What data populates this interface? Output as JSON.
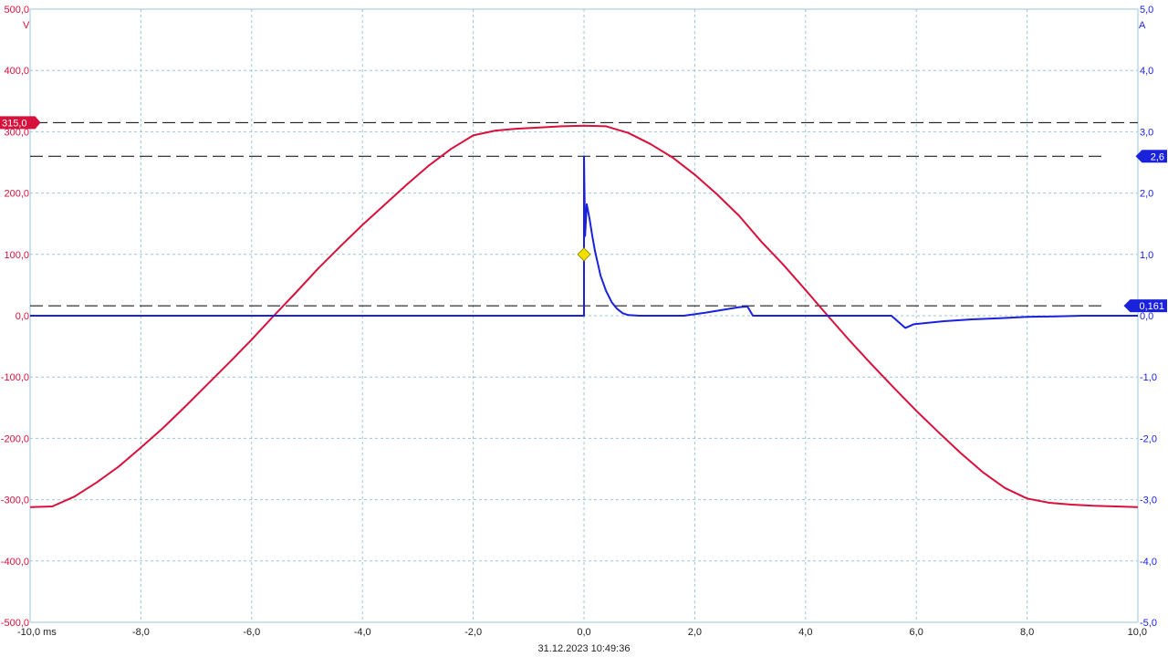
{
  "colors": {
    "voltage": "#d8103c",
    "current": "#1a22dc",
    "grid": "#9cc6d8",
    "cursor_line": "#000000",
    "trigger_marker": "#f0e000",
    "text": "#222222"
  },
  "timestamp": "31.12.2023 10:49:36",
  "chart_data": {
    "type": "line",
    "grid": true,
    "x": {
      "range": [
        -10.0,
        10.0
      ],
      "ticks": [
        -10,
        -8,
        -6,
        -4,
        -2,
        0,
        2,
        4,
        6,
        8,
        10
      ],
      "tick_labels": [
        "-10,0 ms",
        "-8,0",
        "-6,0",
        "-4,0",
        "-2,0",
        "0,0",
        "2,0",
        "4,0",
        "6,0",
        "8,0",
        "10,0"
      ]
    },
    "y_left": {
      "range": [
        -500,
        500
      ],
      "unit": "V",
      "ticks": [
        500,
        400,
        300,
        200,
        100,
        0,
        -100,
        -200,
        -300,
        -400,
        -500
      ],
      "tick_labels": [
        "500,0",
        "400,0",
        "300,0",
        "200,0",
        "100,0",
        "0,0",
        "-100,0",
        "-200,0",
        "-300,0",
        "-400,0",
        "-500,0"
      ]
    },
    "y_right": {
      "range": [
        -5,
        5
      ],
      "unit": "A",
      "ticks": [
        5,
        4,
        3,
        2,
        1,
        0,
        -1,
        -2,
        -3,
        -4,
        -5
      ],
      "tick_labels": [
        "5,0",
        "4,0",
        "3,0",
        "2,0",
        "1,0",
        "0,0",
        "-1,0",
        "-2,0",
        "-3,0",
        "-4,0",
        "-5,0"
      ]
    },
    "cursors": [
      {
        "axis": "left",
        "value": 315.0,
        "label": "315,0"
      },
      {
        "axis": "right",
        "value": 2.6,
        "label": "2,6"
      },
      {
        "axis": "right",
        "value": 0.161,
        "label": "0,161"
      }
    ],
    "trigger": {
      "x": 0.0,
      "y": 1.0
    },
    "series": [
      {
        "axis": "left",
        "points": [
          [
            -10.0,
            -312
          ],
          [
            -9.6,
            -311
          ],
          [
            -9.2,
            -295
          ],
          [
            -8.8,
            -272
          ],
          [
            -8.4,
            -246
          ],
          [
            -8.0,
            -215
          ],
          [
            -7.6,
            -183
          ],
          [
            -7.2,
            -148
          ],
          [
            -6.8,
            -112
          ],
          [
            -6.4,
            -76
          ],
          [
            -6.0,
            -39
          ],
          [
            -5.6,
            0
          ],
          [
            -5.2,
            38
          ],
          [
            -4.8,
            77
          ],
          [
            -4.4,
            113
          ],
          [
            -4.0,
            148
          ],
          [
            -3.6,
            181
          ],
          [
            -3.2,
            214
          ],
          [
            -2.8,
            245
          ],
          [
            -2.4,
            272
          ],
          [
            -2.0,
            294
          ],
          [
            -1.6,
            302
          ],
          [
            -1.2,
            305
          ],
          [
            -0.8,
            307
          ],
          [
            -0.4,
            309
          ],
          [
            0.0,
            310
          ],
          [
            0.4,
            309
          ],
          [
            0.8,
            298
          ],
          [
            1.2,
            280
          ],
          [
            1.6,
            258
          ],
          [
            2.0,
            230
          ],
          [
            2.4,
            198
          ],
          [
            2.8,
            163
          ],
          [
            3.2,
            121
          ],
          [
            3.6,
            83
          ],
          [
            4.0,
            42
          ],
          [
            4.4,
            0
          ],
          [
            4.8,
            -41
          ],
          [
            5.2,
            -80
          ],
          [
            5.6,
            -118
          ],
          [
            6.0,
            -155
          ],
          [
            6.4,
            -190
          ],
          [
            6.8,
            -224
          ],
          [
            7.2,
            -255
          ],
          [
            7.6,
            -281
          ],
          [
            8.0,
            -298
          ],
          [
            8.4,
            -305
          ],
          [
            8.8,
            -308
          ],
          [
            9.2,
            -310
          ],
          [
            9.6,
            -311
          ],
          [
            10.0,
            -312
          ]
        ]
      },
      {
        "axis": "right",
        "points": [
          [
            -10.0,
            0.0
          ],
          [
            0.0,
            0.0
          ],
          [
            0.0,
            2.6
          ],
          [
            0.02,
            1.3
          ],
          [
            0.05,
            1.82
          ],
          [
            0.1,
            1.58
          ],
          [
            0.15,
            1.3
          ],
          [
            0.2,
            1.05
          ],
          [
            0.3,
            0.65
          ],
          [
            0.4,
            0.4
          ],
          [
            0.5,
            0.22
          ],
          [
            0.6,
            0.11
          ],
          [
            0.7,
            0.04
          ],
          [
            0.8,
            0.01
          ],
          [
            1.0,
            0.0
          ],
          [
            1.8,
            0.0
          ],
          [
            2.2,
            0.05
          ],
          [
            2.8,
            0.14
          ],
          [
            2.95,
            0.15
          ],
          [
            3.05,
            0.0
          ],
          [
            5.55,
            0.0
          ],
          [
            5.65,
            -0.08
          ],
          [
            5.8,
            -0.2
          ],
          [
            5.95,
            -0.14
          ],
          [
            6.5,
            -0.09
          ],
          [
            7.0,
            -0.06
          ],
          [
            7.5,
            -0.04
          ],
          [
            8.0,
            -0.02
          ],
          [
            8.5,
            -0.01
          ],
          [
            9.0,
            0.0
          ],
          [
            10.0,
            0.0
          ]
        ]
      }
    ]
  }
}
